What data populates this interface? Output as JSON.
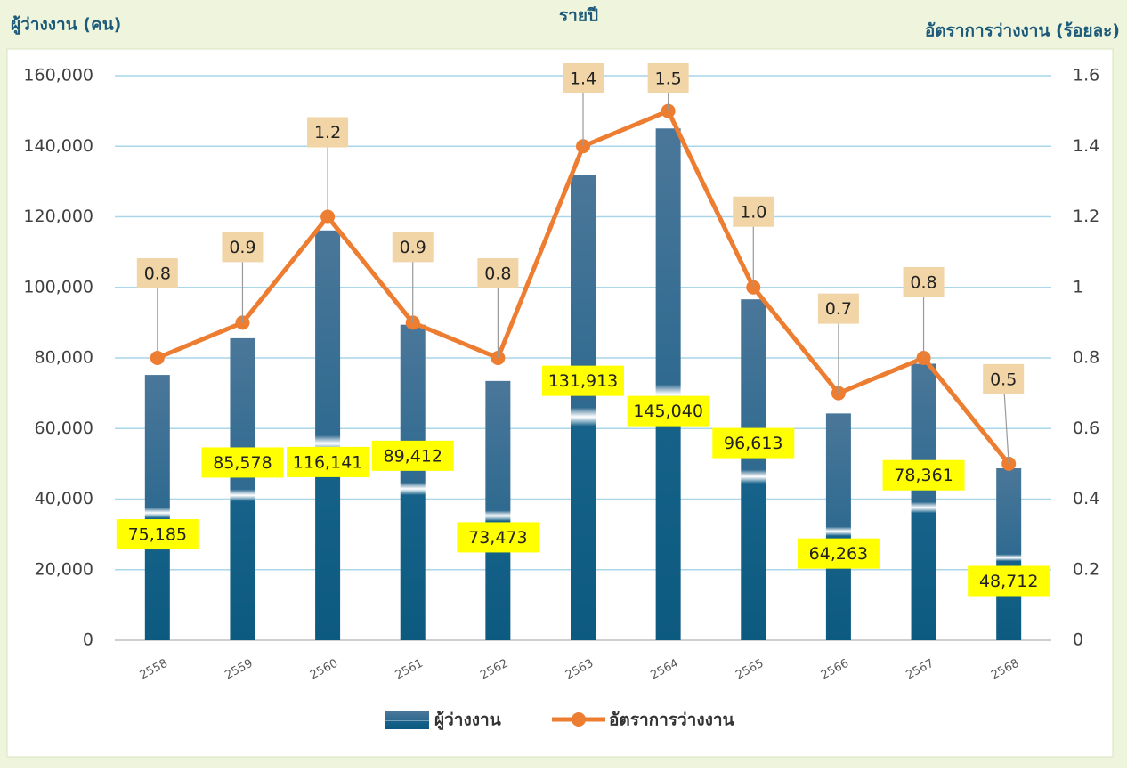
{
  "chart_data": {
    "type": "bar_line",
    "title": "รายปี",
    "y_label": "ผู้ว่างงาน (คน)",
    "y2_label": "อัตราการว่างงาน (ร้อยละ)",
    "categories": [
      "2558",
      "2559",
      "2560",
      "2561",
      "2562",
      "2563",
      "2564",
      "2565",
      "2566",
      "2567",
      "2568"
    ],
    "series": [
      {
        "name": "ผู้ว่างงาน",
        "type": "bar",
        "color": "#1b5f86",
        "values": [
          75185,
          85578,
          116141,
          89412,
          73473,
          131913,
          145040,
          96613,
          64263,
          78361,
          48712
        ],
        "value_labels": [
          "75,185",
          "85,578",
          "116,141",
          "89,412",
          "73,473",
          "131,913",
          "145,040",
          "96,613",
          "64,263",
          "78,361",
          "48,712"
        ]
      },
      {
        "name": "อัตราการว่างงาน",
        "type": "line",
        "axis": "y2",
        "color": "#ed7d31",
        "values": [
          0.8,
          0.9,
          1.2,
          0.9,
          0.8,
          1.4,
          1.5,
          1.0,
          0.7,
          0.8,
          0.5
        ],
        "value_labels": [
          "0.8",
          "0.9",
          "1.2",
          "0.9",
          "0.8",
          "1.4",
          "1.5",
          "1.0",
          "0.7",
          "0.8",
          "0.5"
        ]
      }
    ],
    "ylim": [
      0,
      160000
    ],
    "yticks": [
      0,
      {
        "value": 20000,
        "label": "20,000"
      },
      {
        "value": 40000,
        "label": "40,000"
      },
      {
        "value": 60000,
        "label": "60,000"
      },
      {
        "value": 80000,
        "label": "80,000"
      },
      {
        "value": 100000,
        "label": "100,000"
      },
      {
        "value": 120000,
        "label": "120,000"
      },
      {
        "value": 140000,
        "label": "140,000"
      },
      {
        "value": 160000,
        "label": "160,000"
      }
    ],
    "y2lim": [
      0,
      1.6
    ],
    "y2ticks": [
      0,
      0.2,
      0.4,
      0.6,
      0.8,
      1,
      1.2,
      1.4,
      1.6
    ],
    "grid": true,
    "legend": "bottom"
  }
}
